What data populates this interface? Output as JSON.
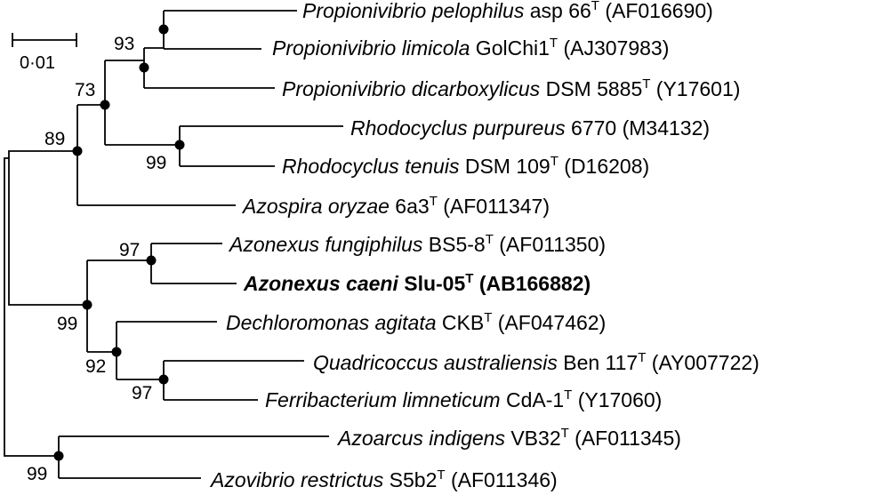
{
  "scale_bar": {
    "label": "0·01"
  },
  "taxa": [
    {
      "genus_species": "Propionivibrio pelophilus",
      "strain": "asp 66",
      "type_strain": true,
      "accession": "(AF016690)",
      "bold": false
    },
    {
      "genus_species": "Propionivibrio limicola",
      "strain": "GolChi1",
      "type_strain": true,
      "accession": "(AJ307983)",
      "bold": false
    },
    {
      "genus_species": "Propionivibrio dicarboxylicus",
      "strain": "DSM 5885",
      "type_strain": true,
      "accession": "(Y17601)",
      "bold": false
    },
    {
      "genus_species": "Rhodocyclus purpureus",
      "strain": "6770",
      "type_strain": false,
      "accession": "(M34132)",
      "bold": false
    },
    {
      "genus_species": "Rhodocyclus tenuis",
      "strain": "DSM 109",
      "type_strain": true,
      "accession": "(D16208)",
      "bold": false
    },
    {
      "genus_species": "Azospira oryzae",
      "strain": "6a3",
      "type_strain": true,
      "accession": "(AF011347)",
      "bold": false
    },
    {
      "genus_species": "Azonexus fungiphilus",
      "strain": "BS5-8",
      "type_strain": true,
      "accession": "(AF011350)",
      "bold": false
    },
    {
      "genus_species": "Azonexus caeni",
      "strain": "Slu-05",
      "type_strain": true,
      "accession": "(AB166882)",
      "bold": true
    },
    {
      "genus_species": "Dechloromonas agitata",
      "strain": "CKB",
      "type_strain": true,
      "accession": "(AF047462)",
      "bold": false
    },
    {
      "genus_species": "Quadricoccus australiensis",
      "strain": "Ben 117",
      "type_strain": true,
      "accession": "(AY007722)",
      "bold": false
    },
    {
      "genus_species": "Ferribacterium limneticum",
      "strain": "CdA-1",
      "type_strain": true,
      "accession": "(Y17060)",
      "bold": false
    },
    {
      "genus_species": "Azoarcus indigens",
      "strain": "VB32",
      "type_strain": true,
      "accession": "(AF011345)",
      "bold": false
    },
    {
      "genus_species": "Azovibrio restrictus",
      "strain": "S5b2",
      "type_strain": true,
      "accession": "(AF011346)",
      "bold": false
    }
  ],
  "type_marker": "T",
  "bootstrap": {
    "propionivibrio_pair": "93",
    "propionivibrio_rhodocyclus": "73",
    "rhodocyclus": "99",
    "upper_clade": "89",
    "azonexus": "97",
    "azonexus_dechloromonas": "99",
    "dechloromonas_group": "92",
    "quadricoccus_ferribacterium": "97",
    "azoarcus_azovibrio": "99"
  }
}
